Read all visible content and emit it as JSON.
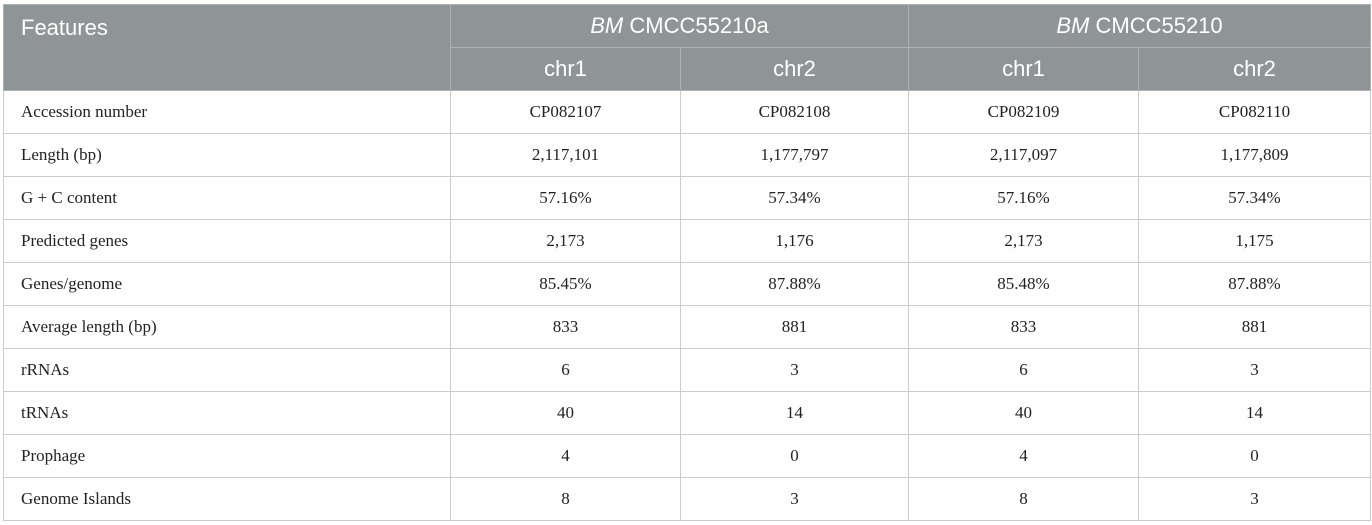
{
  "table": {
    "header": {
      "features": "Features",
      "groups": [
        {
          "prefix": "BM",
          "name": "CMCC55210a"
        },
        {
          "prefix": "BM",
          "name": "CMCC55210"
        }
      ],
      "columns": [
        "chr1",
        "chr2",
        "chr1",
        "chr2"
      ]
    },
    "rows": [
      [
        "Accession number",
        "CP082107",
        "CP082108",
        "CP082109",
        "CP082110"
      ],
      [
        "Length (bp)",
        "2,117,101",
        "1,177,797",
        "2,117,097",
        "1,177,809"
      ],
      [
        "G + C content",
        "57.16%",
        "57.34%",
        "57.16%",
        "57.34%"
      ],
      [
        "Predicted genes",
        "2,173",
        "1,176",
        "2,173",
        "1,175"
      ],
      [
        "Genes/genome",
        "85.45%",
        "87.88%",
        "85.48%",
        "87.88%"
      ],
      [
        "Average length (bp)",
        "833",
        "881",
        "833",
        "881"
      ],
      [
        "rRNAs",
        "6",
        "3",
        "6",
        "3"
      ],
      [
        "tRNAs",
        "40",
        "14",
        "40",
        "14"
      ],
      [
        "Prophage",
        "4",
        "0",
        "4",
        "0"
      ],
      [
        "Genome Islands",
        "8",
        "3",
        "8",
        "3"
      ]
    ]
  }
}
